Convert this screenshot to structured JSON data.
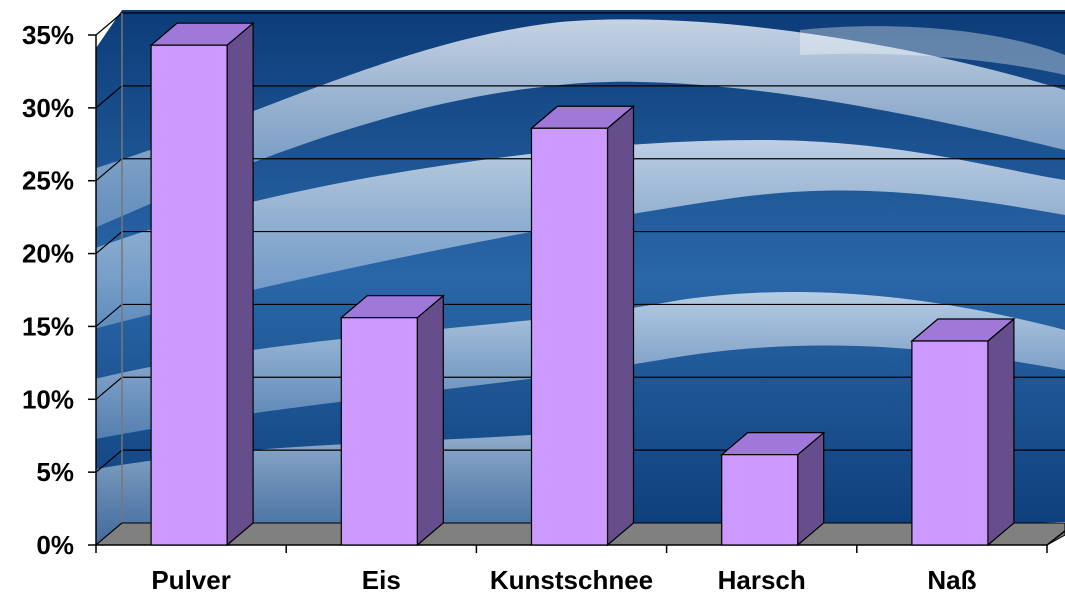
{
  "chart_data": {
    "type": "bar",
    "style": "3d-column",
    "categories": [
      "Pulver",
      "Eis",
      "Kunstschnee",
      "Harsch",
      "Naß"
    ],
    "values": [
      34.3,
      15.6,
      28.6,
      6.2,
      14.0
    ],
    "unit": "%",
    "ylim": [
      0,
      35
    ],
    "yticks": [
      "0%",
      "5%",
      "10%",
      "15%",
      "20%",
      "25%",
      "30%",
      "35%"
    ],
    "ytick_values": [
      0,
      5,
      10,
      15,
      20,
      25,
      30,
      35
    ],
    "grid": true,
    "legend": "none",
    "title": "",
    "xlabel": "",
    "ylabel": "",
    "background": "snow-landscape",
    "colors": {
      "bar_front": "#cc99ff",
      "bar_top": "#a078d8",
      "bar_side": "#664e8c",
      "floor": "#808080",
      "sky_deep": "#0c3c78",
      "sky_mid": "#2a67a8",
      "snow": "#e6f0fa"
    }
  }
}
